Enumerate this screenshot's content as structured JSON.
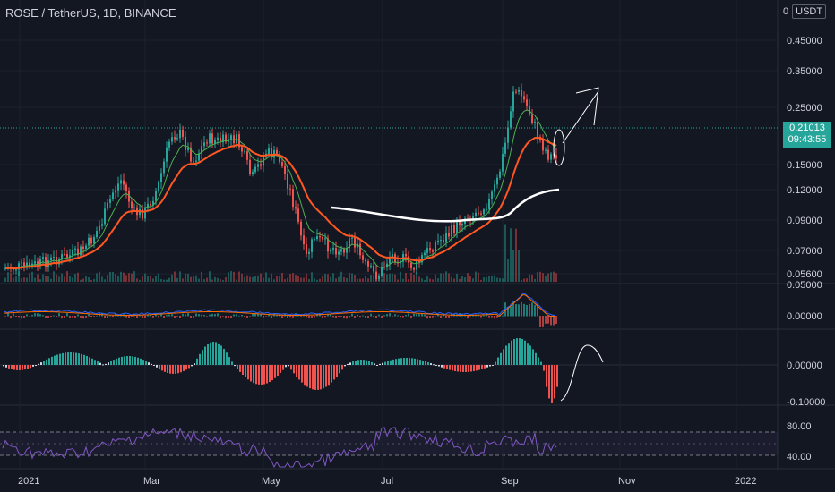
{
  "header": {
    "title": "ROSE / TetherUS, 1D, BINANCE",
    "scale_number": "0",
    "currency": "USDT"
  },
  "price_axis": {
    "ticks": [
      "0.45000",
      "0.35000",
      "0.25000",
      "0.15000",
      "0.12000",
      "0.09000",
      "0.07000",
      "0.05600"
    ],
    "last_price": "0.21013",
    "countdown": "09:43:55"
  },
  "macd_axis": {
    "ticks": [
      "0.05000",
      "0.00000"
    ]
  },
  "osc_axis": {
    "ticks": [
      "0.00000",
      "-0.10000"
    ]
  },
  "rsi_axis": {
    "ticks": [
      "80.00",
      "40.00"
    ]
  },
  "time_axis": {
    "ticks": [
      "2021",
      "Mar",
      "May",
      "Jul",
      "Sep",
      "Nov",
      "2022"
    ]
  },
  "colors": {
    "background": "#131722",
    "up": "#26a69a",
    "down": "#ef5350",
    "ma_fast": "#4caf50",
    "ma_slow": "#ff5722",
    "rsi": "#7e57c2",
    "macd": "#2962ff",
    "signal": "#ff6d00"
  }
}
